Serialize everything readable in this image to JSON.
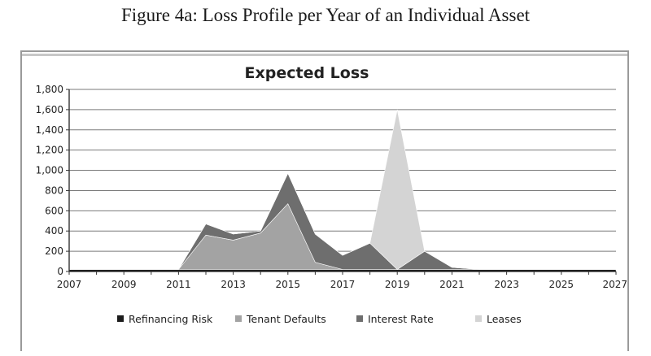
{
  "figure_title": "Figure 4a: Loss Profile per Year of an Individual Asset",
  "chart_data": {
    "type": "area",
    "stacked": true,
    "title": "Expected Loss",
    "xlabel": "",
    "ylabel": "",
    "x": [
      2007,
      2008,
      2009,
      2010,
      2011,
      2012,
      2013,
      2014,
      2015,
      2016,
      2017,
      2018,
      2019,
      2020,
      2021,
      2022,
      2023,
      2024,
      2025,
      2026,
      2027
    ],
    "xlim": [
      2007,
      2027
    ],
    "ylim": [
      0,
      1800
    ],
    "x_ticks": [
      2007,
      2009,
      2011,
      2013,
      2015,
      2017,
      2019,
      2021,
      2023,
      2025,
      2027
    ],
    "x_tick_labels": [
      "2007",
      "2009",
      "2011",
      "2013",
      "2015",
      "2017",
      "2019",
      "2021",
      "2023",
      "2025",
      "2027"
    ],
    "y_ticks": [
      0,
      200,
      400,
      600,
      800,
      1000,
      1200,
      1400,
      1600,
      1800
    ],
    "y_tick_labels": [
      "0",
      "200",
      "400",
      "600",
      "800",
      "1,000",
      "1,200",
      "1,400",
      "1,600",
      "1,800"
    ],
    "grid": true,
    "legend_position": "bottom",
    "series": [
      {
        "name": "Refinancing Risk",
        "color": "#1c1c1c",
        "values": [
          20,
          20,
          20,
          20,
          20,
          20,
          20,
          20,
          20,
          20,
          20,
          20,
          20,
          20,
          20,
          20,
          20,
          20,
          20,
          20,
          20
        ]
      },
      {
        "name": "Tenant Defaults",
        "color": "#a3a3a3",
        "values": [
          0,
          0,
          0,
          0,
          0,
          340,
          290,
          360,
          650,
          70,
          0,
          0,
          0,
          0,
          0,
          0,
          0,
          0,
          0,
          0,
          0
        ]
      },
      {
        "name": "Interest Rate",
        "color": "#6e6e6e",
        "values": [
          0,
          0,
          0,
          0,
          0,
          110,
          60,
          20,
          300,
          280,
          140,
          260,
          0,
          180,
          20,
          0,
          0,
          0,
          0,
          0,
          0
        ]
      },
      {
        "name": "Leases",
        "color": "#d4d4d4",
        "values": [
          0,
          0,
          0,
          0,
          0,
          0,
          0,
          0,
          0,
          0,
          0,
          0,
          1580,
          0,
          0,
          0,
          0,
          0,
          0,
          0,
          0
        ]
      }
    ]
  }
}
